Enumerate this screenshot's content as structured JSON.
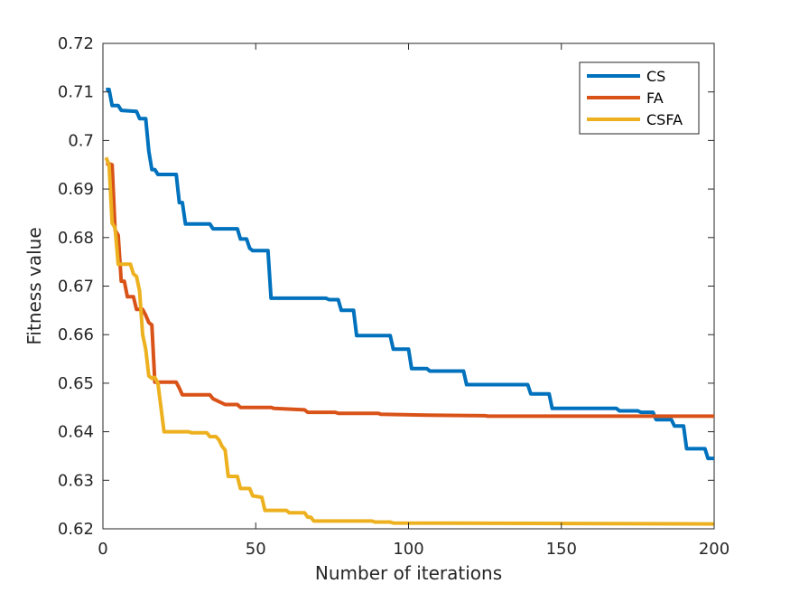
{
  "chart_data": {
    "type": "line",
    "title": "",
    "xlabel": "Number of iterations",
    "ylabel": "Fitness value",
    "xlim": [
      0,
      200
    ],
    "ylim": [
      0.62,
      0.72
    ],
    "x_ticks": [
      "0",
      "50",
      "100",
      "150",
      "200"
    ],
    "y_ticks": [
      "0.62",
      "0.63",
      "0.64",
      "0.65",
      "0.66",
      "0.67",
      "0.68",
      "0.69",
      "0.7",
      "0.71",
      "0.72"
    ],
    "grid": false,
    "legend_position": "top-right",
    "series": [
      {
        "name": "CS",
        "color": "#0072BD",
        "points": [
          [
            1,
            0.7105
          ],
          [
            2,
            0.7105
          ],
          [
            3,
            0.7072
          ],
          [
            5,
            0.7072
          ],
          [
            6,
            0.7062
          ],
          [
            11,
            0.706
          ],
          [
            12,
            0.7045
          ],
          [
            14,
            0.7045
          ],
          [
            15,
            0.6978
          ],
          [
            16,
            0.694
          ],
          [
            17,
            0.694
          ],
          [
            18,
            0.693
          ],
          [
            24,
            0.693
          ],
          [
            25,
            0.6872
          ],
          [
            26,
            0.6872
          ],
          [
            27,
            0.6828
          ],
          [
            35,
            0.6828
          ],
          [
            36,
            0.6818
          ],
          [
            44,
            0.6818
          ],
          [
            45,
            0.6797
          ],
          [
            47,
            0.6797
          ],
          [
            48,
            0.6778
          ],
          [
            49,
            0.6773
          ],
          [
            54,
            0.6773
          ],
          [
            55,
            0.6675
          ],
          [
            73,
            0.6675
          ],
          [
            74,
            0.6672
          ],
          [
            77,
            0.6672
          ],
          [
            78,
            0.665
          ],
          [
            82,
            0.665
          ],
          [
            83,
            0.6598
          ],
          [
            94,
            0.6598
          ],
          [
            95,
            0.657
          ],
          [
            100,
            0.657
          ],
          [
            101,
            0.653
          ],
          [
            106,
            0.653
          ],
          [
            107,
            0.6525
          ],
          [
            118,
            0.6525
          ],
          [
            119,
            0.6497
          ],
          [
            139,
            0.6497
          ],
          [
            140,
            0.6478
          ],
          [
            146,
            0.6478
          ],
          [
            147,
            0.6448
          ],
          [
            168,
            0.6448
          ],
          [
            169,
            0.6443
          ],
          [
            175,
            0.6443
          ],
          [
            176,
            0.644
          ],
          [
            180,
            0.644
          ],
          [
            181,
            0.6425
          ],
          [
            186,
            0.6425
          ],
          [
            187,
            0.6412
          ],
          [
            190,
            0.6412
          ],
          [
            191,
            0.6365
          ],
          [
            197,
            0.6365
          ],
          [
            198,
            0.6345
          ],
          [
            200,
            0.6345
          ]
        ]
      },
      {
        "name": "FA",
        "color": "#D95319",
        "points": [
          [
            1,
            0.6952
          ],
          [
            2,
            0.6952
          ],
          [
            3,
            0.695
          ],
          [
            4,
            0.6815
          ],
          [
            5,
            0.6805
          ],
          [
            6,
            0.671
          ],
          [
            7,
            0.671
          ],
          [
            8,
            0.6678
          ],
          [
            10,
            0.6678
          ],
          [
            11,
            0.6652
          ],
          [
            13,
            0.6652
          ],
          [
            14,
            0.664
          ],
          [
            15,
            0.6625
          ],
          [
            16,
            0.662
          ],
          [
            17,
            0.6502
          ],
          [
            24,
            0.6502
          ],
          [
            25,
            0.649
          ],
          [
            26,
            0.6476
          ],
          [
            35,
            0.6476
          ],
          [
            36,
            0.6468
          ],
          [
            38,
            0.6462
          ],
          [
            40,
            0.6456
          ],
          [
            44,
            0.6456
          ],
          [
            45,
            0.645
          ],
          [
            55,
            0.645
          ],
          [
            56,
            0.6448
          ],
          [
            66,
            0.6445
          ],
          [
            67,
            0.644
          ],
          [
            76,
            0.644
          ],
          [
            77,
            0.6438
          ],
          [
            90,
            0.6438
          ],
          [
            91,
            0.6436
          ],
          [
            106,
            0.6434
          ],
          [
            125,
            0.6433
          ],
          [
            126,
            0.6432
          ],
          [
            160,
            0.6432
          ],
          [
            200,
            0.6432
          ]
        ]
      },
      {
        "name": "CSFA",
        "color": "#EDB120",
        "points": [
          [
            1,
            0.6965
          ],
          [
            2,
            0.695
          ],
          [
            3,
            0.683
          ],
          [
            4,
            0.682
          ],
          [
            5,
            0.6745
          ],
          [
            9,
            0.6745
          ],
          [
            10,
            0.6725
          ],
          [
            11,
            0.672
          ],
          [
            12,
            0.669
          ],
          [
            13,
            0.66
          ],
          [
            14,
            0.657
          ],
          [
            15,
            0.6515
          ],
          [
            16,
            0.651
          ],
          [
            17,
            0.6512
          ],
          [
            18,
            0.65
          ],
          [
            19,
            0.645
          ],
          [
            20,
            0.64
          ],
          [
            28,
            0.64
          ],
          [
            29,
            0.6398
          ],
          [
            34,
            0.6398
          ],
          [
            35,
            0.639
          ],
          [
            37,
            0.639
          ],
          [
            38,
            0.6383
          ],
          [
            39,
            0.637
          ],
          [
            40,
            0.6362
          ],
          [
            41,
            0.6308
          ],
          [
            44,
            0.6308
          ],
          [
            45,
            0.6283
          ],
          [
            48,
            0.6283
          ],
          [
            49,
            0.6268
          ],
          [
            52,
            0.6265
          ],
          [
            53,
            0.6238
          ],
          [
            60,
            0.6238
          ],
          [
            61,
            0.6233
          ],
          [
            66,
            0.6233
          ],
          [
            67,
            0.6224
          ],
          [
            68,
            0.6224
          ],
          [
            69,
            0.6216
          ],
          [
            88,
            0.6216
          ],
          [
            89,
            0.6214
          ],
          [
            94,
            0.6214
          ],
          [
            95,
            0.6212
          ],
          [
            200,
            0.621
          ]
        ]
      }
    ]
  }
}
